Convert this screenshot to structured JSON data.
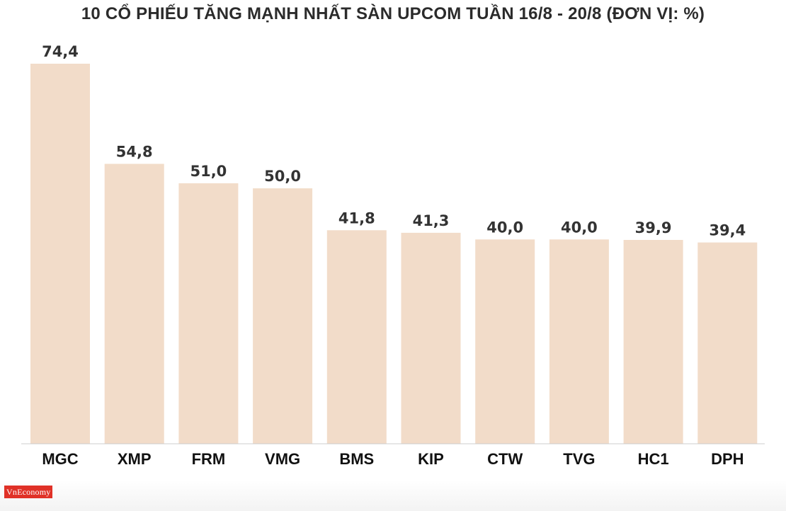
{
  "title": "10 CỔ PHIẾU TĂNG MẠNH NHẤT SÀN UPCOM TUẦN 16/8 - 20/8 (ĐƠN VỊ: %)",
  "brand": "VnEconomy",
  "colors": {
    "bar": "#f2dcc9",
    "baseline": "#cccccc",
    "brand_bg": "#e03127"
  },
  "chart_data": {
    "type": "bar",
    "title": "10 CỔ PHIẾU TĂNG MẠNH NHẤT SÀN UPCOM TUẦN 16/8 - 20/8 (ĐƠN VỊ: %)",
    "xlabel": "",
    "ylabel": "",
    "ylim": [
      0,
      74.4
    ],
    "grid": false,
    "legend": "none",
    "categories": [
      "MGC",
      "XMP",
      "FRM",
      "VMG",
      "BMS",
      "KIP",
      "CTW",
      "TVG",
      "HC1",
      "DPH"
    ],
    "values": [
      74.4,
      54.8,
      51.0,
      50.0,
      41.8,
      41.3,
      40.0,
      40.0,
      39.9,
      39.4
    ],
    "value_labels": [
      "74,4",
      "54,8",
      "51,0",
      "50,0",
      "41,8",
      "41,3",
      "40,0",
      "40,0",
      "39,9",
      "39,4"
    ]
  }
}
